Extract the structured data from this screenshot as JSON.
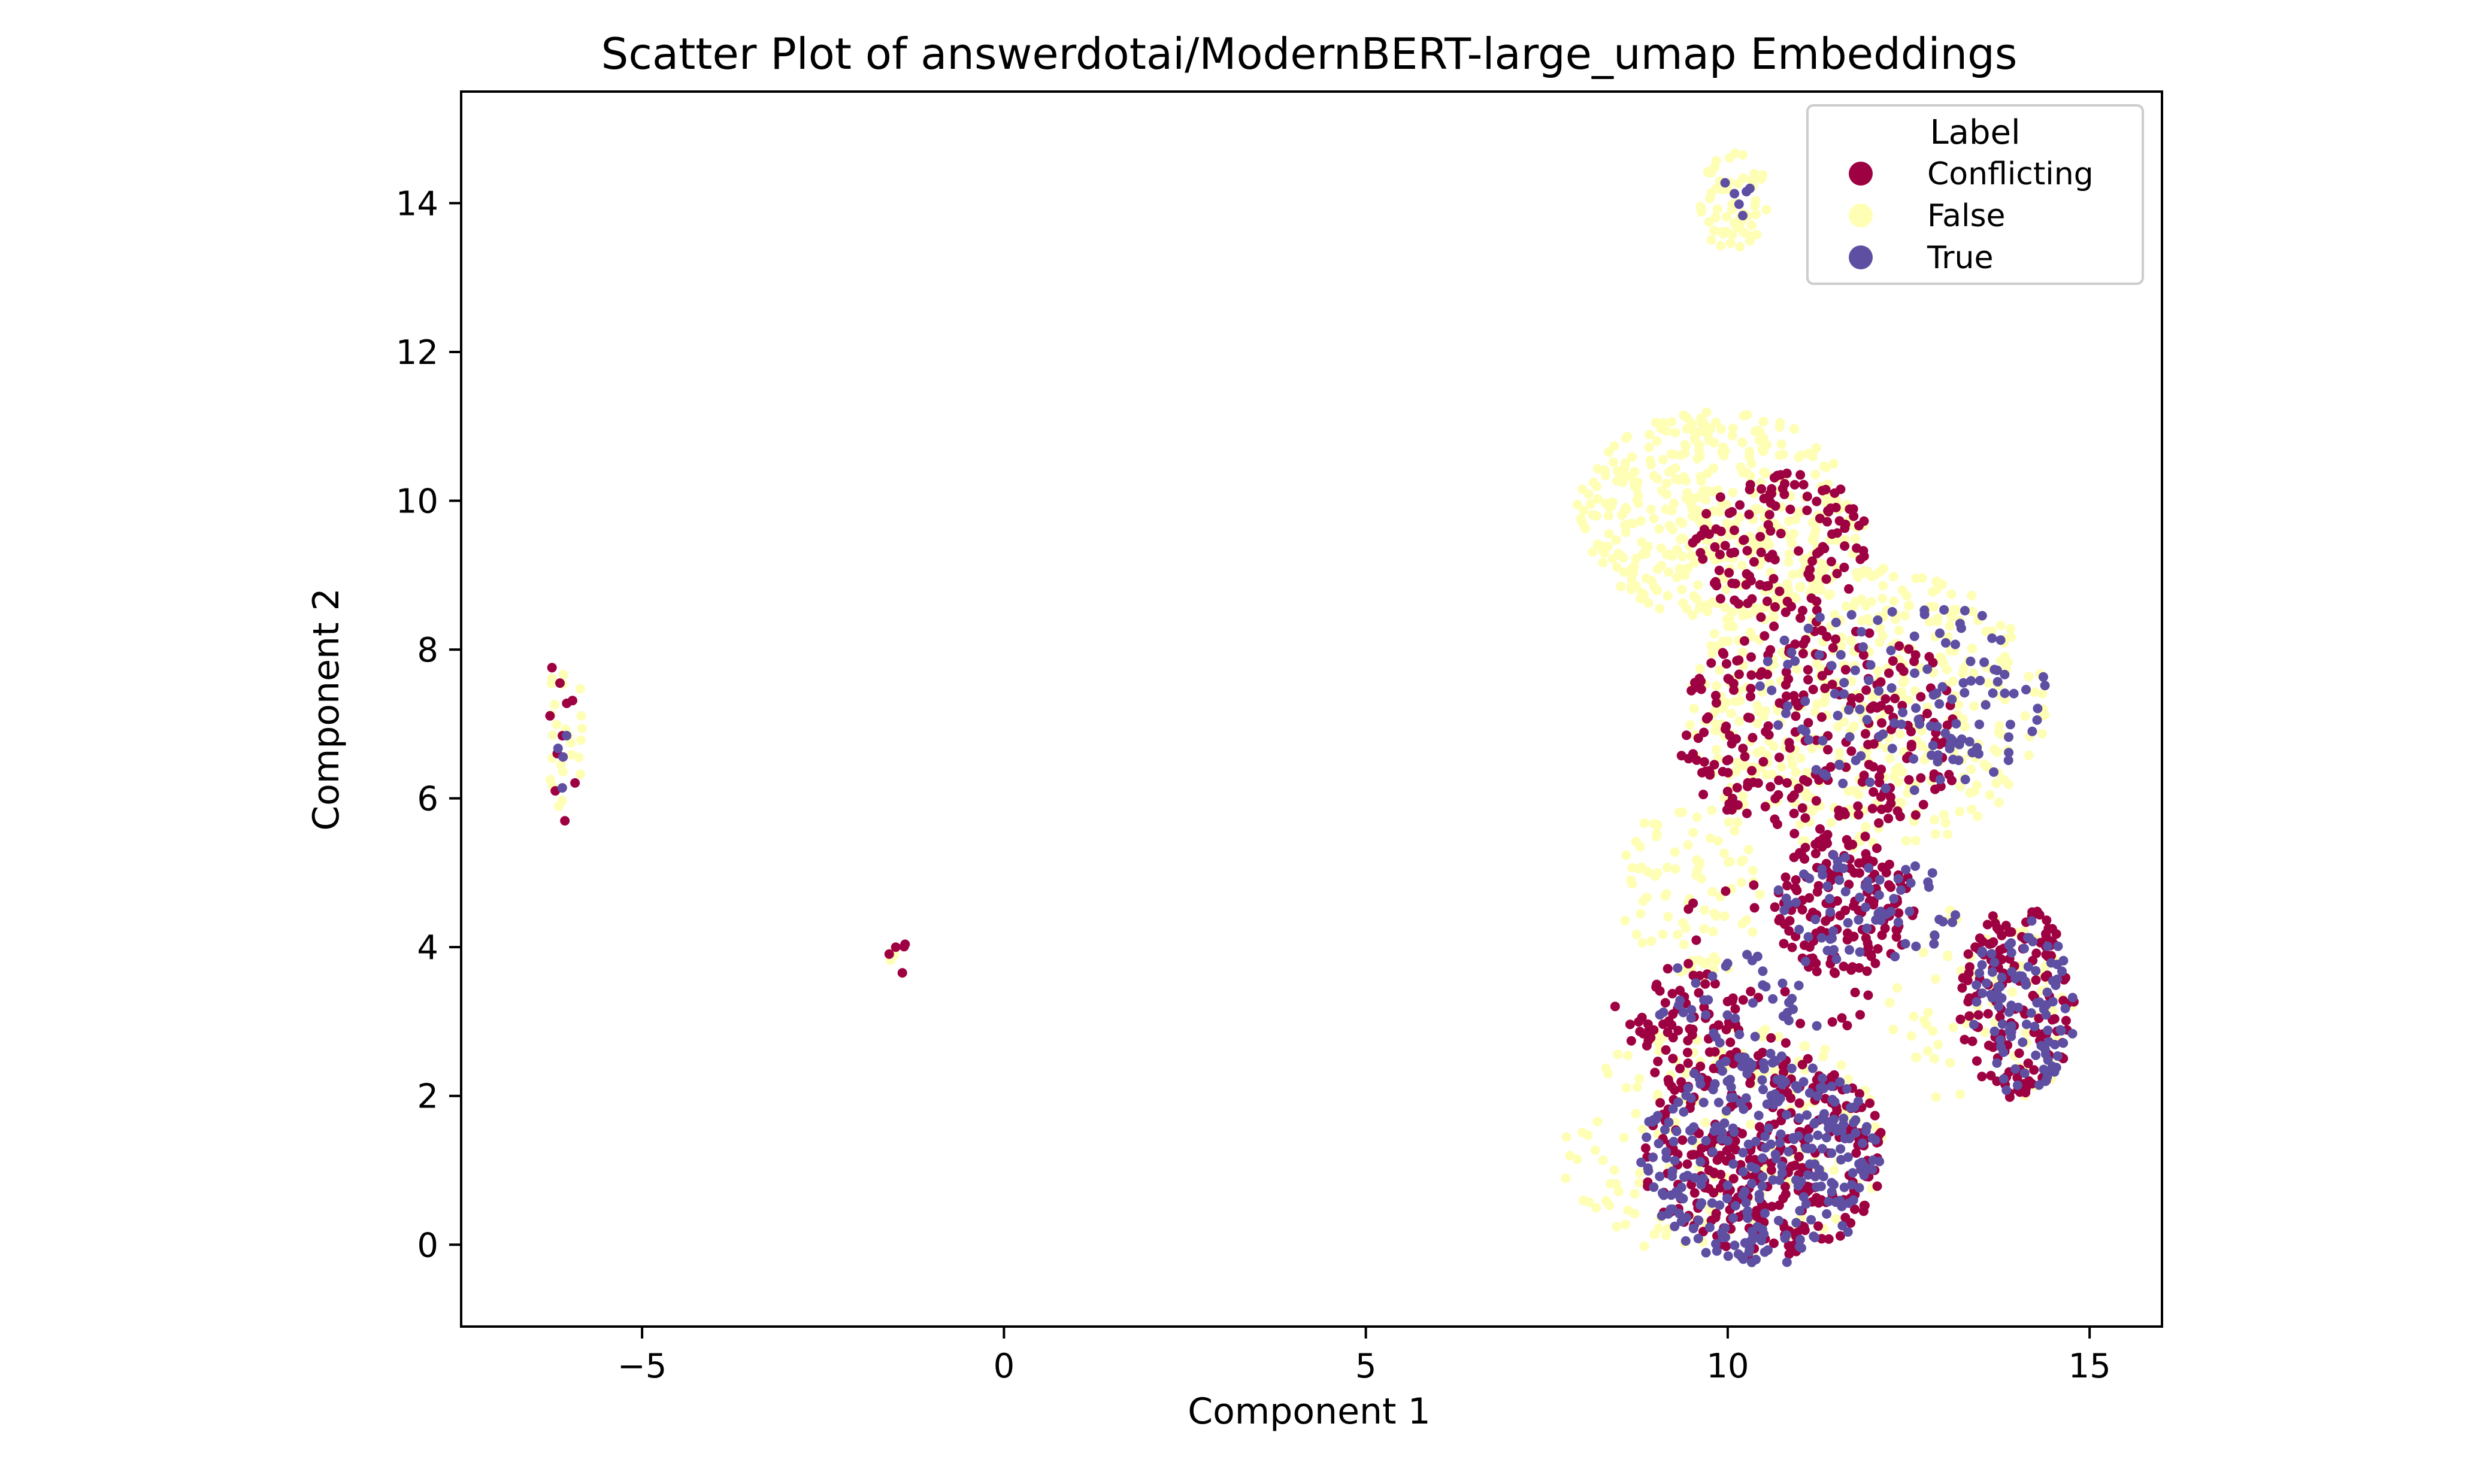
{
  "chart_data": {
    "type": "scatter",
    "title": "Scatter Plot of answerdotai/ModernBERT-large_umap Embeddings",
    "xlabel": "Component 1",
    "ylabel": "Component 2",
    "xlim": [
      -7.5,
      16
    ],
    "ylim": [
      -1.1,
      15.5
    ],
    "xticks": [
      -5,
      0,
      5,
      10,
      15
    ],
    "xtick_labels": [
      "−5",
      "0",
      "5",
      "10",
      "15"
    ],
    "yticks": [
      0,
      2,
      4,
      6,
      8,
      10,
      12,
      14
    ],
    "ytick_labels": [
      "0",
      "2",
      "4",
      "6",
      "8",
      "10",
      "12",
      "14"
    ],
    "grid": false,
    "legend": {
      "title": "Label",
      "placement": "top-right",
      "entries": [
        "Conflicting",
        "False",
        "True"
      ]
    },
    "series": [
      {
        "name": "Conflicting",
        "color": "#9e0142",
        "clusters": [
          {
            "x": [
              -6.35,
              -5.85
            ],
            "y": [
              5.5,
              8.0
            ],
            "n": 10
          },
          {
            "x": [
              -1.6,
              -1.2
            ],
            "y": [
              3.6,
              4.05
            ],
            "n": 5
          },
          {
            "x": [
              8.8,
              12.2
            ],
            "y": [
              -0.2,
              2.6
            ],
            "n": 320
          },
          {
            "x": [
              8.8,
              10.2
            ],
            "y": [
              2.0,
              3.8
            ],
            "n": 70
          },
          {
            "x": [
              13.2,
              14.8
            ],
            "y": [
              1.9,
              4.6
            ],
            "n": 150
          },
          {
            "x": [
              10.6,
              12.6
            ],
            "y": [
              3.6,
              5.5
            ],
            "n": 140
          },
          {
            "x": [
              9.3,
              13.3
            ],
            "y": [
              5.4,
              8.4
            ],
            "n": 260
          },
          {
            "x": [
              9.5,
              12.0
            ],
            "y": [
              8.4,
              10.4
            ],
            "n": 130
          },
          {
            "x": [
              8.3,
              12.8
            ],
            "y": [
              2.0,
              5.0
            ],
            "n": 40
          }
        ]
      },
      {
        "name": "False",
        "color": "#fefeb5",
        "clusters": [
          {
            "x": [
              -6.3,
              -5.8
            ],
            "y": [
              5.5,
              8.15
            ],
            "n": 25
          },
          {
            "x": [
              -1.6,
              -1.3
            ],
            "y": [
              3.75,
              4.0
            ],
            "n": 4
          },
          {
            "x": [
              9.6,
              10.6
            ],
            "y": [
              13.3,
              14.7
            ],
            "n": 60
          },
          {
            "x": [
              7.9,
              11.9
            ],
            "y": [
              8.4,
              11.2
            ],
            "n": 420
          },
          {
            "x": [
              9.4,
              14.4
            ],
            "y": [
              5.3,
              9.1
            ],
            "n": 460
          },
          {
            "x": [
              8.5,
              10.5
            ],
            "y": [
              3.5,
              6.0
            ],
            "n": 90
          },
          {
            "x": [
              7.6,
              12.2
            ],
            "y": [
              -0.2,
              3.0
            ],
            "n": 160
          },
          {
            "x": [
              12.2,
              14.8
            ],
            "y": [
              1.7,
              4.6
            ],
            "n": 70
          }
        ]
      },
      {
        "name": "True",
        "color": "#5e4fa2",
        "clusters": [
          {
            "x": [
              -6.2,
              -6.0
            ],
            "y": [
              6.0,
              7.3
            ],
            "n": 4
          },
          {
            "x": [
              9.9,
              10.4
            ],
            "y": [
              13.6,
              14.5
            ],
            "n": 6
          },
          {
            "x": [
              8.8,
              12.1
            ],
            "y": [
              -0.3,
              2.6
            ],
            "n": 300
          },
          {
            "x": [
              13.3,
              14.8
            ],
            "y": [
              2.0,
              4.4
            ],
            "n": 100
          },
          {
            "x": [
              10.6,
              13.2
            ],
            "y": [
              3.8,
              5.3
            ],
            "n": 70
          },
          {
            "x": [
              10.4,
              14.5
            ],
            "y": [
              6.0,
              8.7
            ],
            "n": 130
          },
          {
            "x": [
              9.0,
              11.5
            ],
            "y": [
              2.6,
              4.0
            ],
            "n": 40
          }
        ]
      }
    ]
  }
}
